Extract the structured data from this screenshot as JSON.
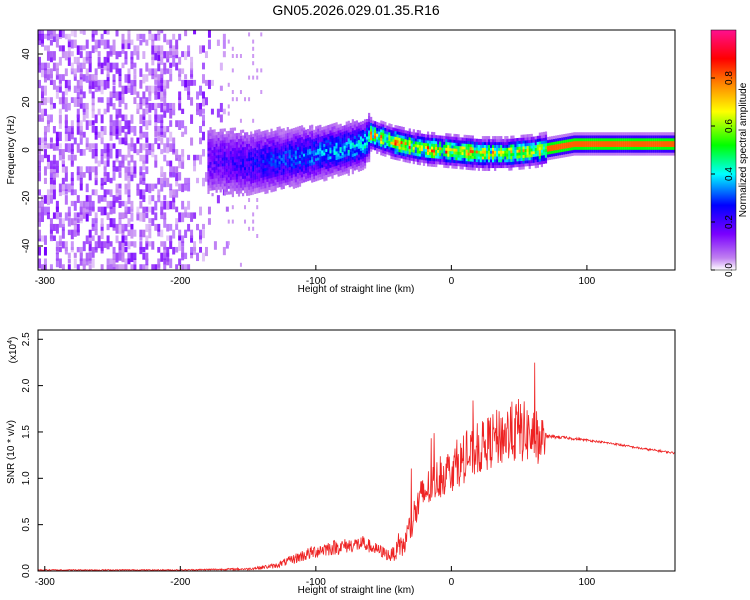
{
  "chart_data": [
    {
      "type": "heatmap",
      "title": "GN05.2026.029.01.35.R16",
      "xlabel": "Height of straight line (km)",
      "ylabel": "Frequency (Hz)",
      "xlim": [
        -305,
        165
      ],
      "ylim": [
        -50,
        50
      ],
      "xticks": [
        -300,
        -200,
        -100,
        0,
        100
      ],
      "yticks": [
        -40,
        -20,
        0,
        20,
        40
      ],
      "colorbar": {
        "label": "Normalized spectral amplitude",
        "range": [
          0,
          1
        ],
        "ticks": [
          "0.0",
          "0.2",
          "0.4",
          "0.6",
          "0.8"
        ],
        "tick_values": [
          0,
          0.2,
          0.4,
          0.6,
          0.8
        ],
        "colors": [
          "#ffffff",
          "#a020f0",
          "#0000ff",
          "#00ffff",
          "#00ff00",
          "#ffff00",
          "#ff8000",
          "#ff0000",
          "#ff00a0"
        ]
      },
      "ridge": {
        "description_points_x": [
          -175,
          -150,
          -120,
          -100,
          -80,
          -65,
          -60,
          -45,
          -30,
          -20,
          0,
          20,
          40,
          60,
          70,
          80,
          90,
          165
        ],
        "center_freq_hz": [
          -5,
          -6,
          -4,
          -2,
          0,
          2,
          6,
          3,
          1,
          0,
          -1,
          -2,
          -2,
          -1,
          0,
          1,
          2,
          2
        ]
      },
      "noise_region_x": [
        -305,
        -165
      ]
    },
    {
      "type": "line",
      "title": "",
      "xlabel": "Height of straight line (km)",
      "ylabel": "SNR (10 * v/v)",
      "y_multiplier": "(x10^4)",
      "y_multiplier_base": "(x10",
      "y_multiplier_exp": "4",
      "y_multiplier_close": ")",
      "xlim": [
        -305,
        165
      ],
      "ylim": [
        0,
        2.6
      ],
      "xticks": [
        -300,
        -200,
        -100,
        0,
        100
      ],
      "yticks": [
        0.0,
        0.5,
        1.0,
        1.5,
        2.0,
        2.5
      ],
      "ytick_labels": [
        "0.0",
        "0.5",
        "1.0",
        "1.5",
        "2.0",
        "2.5"
      ],
      "series": [
        {
          "name": "SNR",
          "color": "#ee2222",
          "envelope_x": [
            -305,
            -200,
            -150,
            -130,
            -110,
            -95,
            -80,
            -65,
            -55,
            -45,
            -35,
            -30,
            -25,
            -20,
            -10,
            0,
            10,
            20,
            30,
            40,
            50,
            60,
            68,
            70,
            80,
            100,
            120,
            140,
            165
          ],
          "envelope_mean": [
            0.01,
            0.01,
            0.02,
            0.05,
            0.15,
            0.22,
            0.25,
            0.28,
            0.22,
            0.15,
            0.25,
            0.45,
            0.65,
            0.8,
            0.95,
            1.05,
            1.15,
            1.25,
            1.35,
            1.4,
            1.45,
            1.4,
            1.35,
            1.45,
            1.44,
            1.41,
            1.37,
            1.32,
            1.27
          ],
          "envelope_spread": [
            0.01,
            0.01,
            0.02,
            0.05,
            0.12,
            0.15,
            0.15,
            0.15,
            0.12,
            0.12,
            0.25,
            0.35,
            0.4,
            0.4,
            0.4,
            0.45,
            0.45,
            0.5,
            0.55,
            0.6,
            0.65,
            0.55,
            0.5,
            0.03,
            0.03,
            0.02,
            0.02,
            0.02,
            0.02
          ]
        }
      ]
    }
  ]
}
